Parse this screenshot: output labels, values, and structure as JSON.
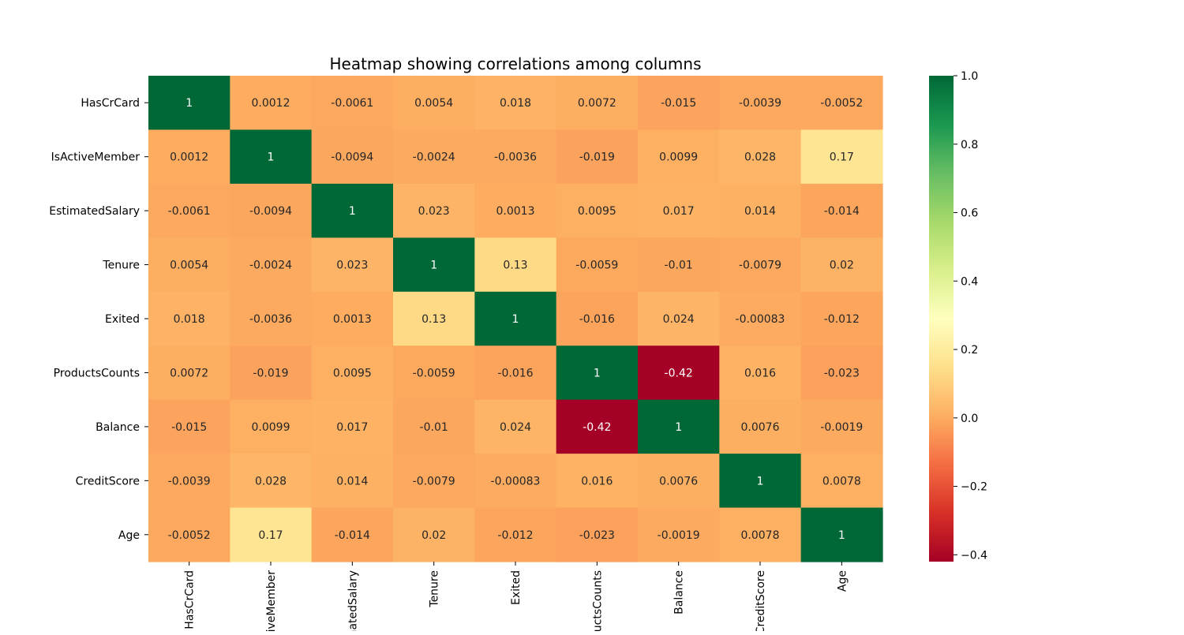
{
  "chart_data": {
    "type": "heatmap",
    "title": "Heatmap showing correlations among columns",
    "rows": [
      "HasCrCard",
      "IsActiveMember",
      "EstimatedSalary",
      "Tenure",
      "Exited",
      "ProductsCounts",
      "Balance",
      "CreditScore",
      "Age"
    ],
    "columns": [
      "HasCrCard",
      "IsActiveMember",
      "EstimatedSalary",
      "Tenure",
      "Exited",
      "ProductsCounts",
      "Balance",
      "CreditScore",
      "Age"
    ],
    "values": [
      [
        1,
        0.0012,
        -0.0061,
        0.0054,
        0.018,
        0.0072,
        -0.015,
        -0.0039,
        -0.0052
      ],
      [
        0.0012,
        1,
        -0.0094,
        -0.0024,
        -0.0036,
        -0.019,
        0.0099,
        0.028,
        0.17
      ],
      [
        -0.0061,
        -0.0094,
        1,
        0.023,
        0.0013,
        0.0095,
        0.017,
        0.014,
        -0.014
      ],
      [
        0.0054,
        -0.0024,
        0.023,
        1,
        0.13,
        -0.0059,
        -0.01,
        -0.0079,
        0.02
      ],
      [
        0.018,
        -0.0036,
        0.0013,
        0.13,
        1,
        -0.016,
        0.024,
        -0.00083,
        -0.012
      ],
      [
        0.0072,
        -0.019,
        0.0095,
        -0.0059,
        -0.016,
        1,
        -0.42,
        0.016,
        -0.023
      ],
      [
        -0.015,
        0.0099,
        0.017,
        -0.01,
        0.024,
        -0.42,
        1,
        0.0076,
        -0.0019
      ],
      [
        -0.0039,
        0.028,
        0.014,
        -0.0079,
        -0.00083,
        0.016,
        0.0076,
        1,
        0.0078
      ],
      [
        -0.0052,
        0.17,
        -0.014,
        0.02,
        -0.012,
        -0.023,
        -0.0019,
        0.0078,
        1
      ]
    ],
    "annotations": [
      [
        "1",
        "0.0012",
        "-0.0061",
        "0.0054",
        "0.018",
        "0.0072",
        "-0.015",
        "-0.0039",
        "-0.0052"
      ],
      [
        "0.0012",
        "1",
        "-0.0094",
        "-0.0024",
        "-0.0036",
        "-0.019",
        "0.0099",
        "0.028",
        "0.17"
      ],
      [
        "-0.0061",
        "-0.0094",
        "1",
        "0.023",
        "0.0013",
        "0.0095",
        "0.017",
        "0.014",
        "-0.014"
      ],
      [
        "0.0054",
        "-0.0024",
        "0.023",
        "1",
        "0.13",
        "-0.0059",
        "-0.01",
        "-0.0079",
        "0.02"
      ],
      [
        "0.018",
        "-0.0036",
        "0.0013",
        "0.13",
        "1",
        "-0.016",
        "0.024",
        "-0.00083",
        "-0.012"
      ],
      [
        "0.0072",
        "-0.019",
        "0.0095",
        "-0.0059",
        "-0.016",
        "1",
        "-0.42",
        "0.016",
        "-0.023"
      ],
      [
        "-0.015",
        "0.0099",
        "0.017",
        "-0.01",
        "0.024",
        "-0.42",
        "1",
        "0.0076",
        "-0.0019"
      ],
      [
        "-0.0039",
        "0.028",
        "0.014",
        "-0.0079",
        "-0.00083",
        "0.016",
        "0.0076",
        "1",
        "0.0078"
      ],
      [
        "-0.0052",
        "0.17",
        "-0.014",
        "0.02",
        "-0.012",
        "-0.023",
        "-0.0019",
        "0.0078",
        "1"
      ]
    ],
    "colormap": "RdYlGn",
    "colorbar": {
      "vmin": -0.42,
      "vmax": 1.0,
      "ticks": [
        1.0,
        0.8,
        0.6,
        0.4,
        0.2,
        0.0,
        -0.2,
        -0.4
      ],
      "tick_labels": [
        "1.0",
        "0.8",
        "0.6",
        "0.4",
        "0.2",
        "0.0",
        "−0.2",
        "−0.4"
      ]
    },
    "xlabel": "",
    "ylabel": "",
    "grid": false,
    "legend": "colorbar-right",
    "colors": {
      "low": "#a50026",
      "mid": "#ffffbf",
      "high": "#006837",
      "annotation_dark": "#262626",
      "annotation_light": "#ffffff"
    }
  }
}
